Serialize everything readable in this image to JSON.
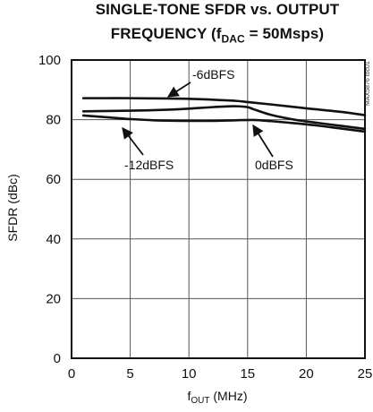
{
  "title": {
    "line1": "SINGLE-TONE SFDR vs. OUTPUT",
    "line2_prefix": "FREQUENCY (f",
    "line2_sub": "DAC",
    "line2_suffix": " = 50Msps)"
  },
  "figure_code": "MAX5876 toc01",
  "chart_data": {
    "type": "line",
    "title": "SINGLE-TONE SFDR vs. OUTPUT FREQUENCY (fDAC = 50Msps)",
    "xlabel": {
      "prefix": "f",
      "sub": "OUT",
      "suffix": " (MHz)"
    },
    "ylabel": "SFDR (dBc)",
    "xlim": [
      0,
      25
    ],
    "ylim": [
      0,
      100
    ],
    "xticks": [
      0,
      5,
      10,
      15,
      20,
      25
    ],
    "yticks": [
      0,
      20,
      40,
      60,
      80,
      100
    ],
    "grid": true,
    "series": [
      {
        "name": "-6dBFS",
        "x": [
          1,
          3,
          5,
          8,
          10,
          12,
          14,
          15,
          17,
          20,
          23,
          25
        ],
        "y": [
          87.2,
          87.2,
          87.2,
          87.1,
          87.0,
          86.7,
          86.3,
          85.9,
          85.1,
          83.8,
          82.6,
          81.5
        ]
      },
      {
        "name": "0dBFS",
        "x": [
          1,
          3,
          5,
          8,
          10,
          12,
          13,
          14,
          15,
          15.5,
          17,
          19,
          21,
          23,
          25
        ],
        "y": [
          82.8,
          82.9,
          83.0,
          83.3,
          83.7,
          84.2,
          84.4,
          84.5,
          84.2,
          83.5,
          81.6,
          80.0,
          78.9,
          77.9,
          76.9
        ]
      },
      {
        "name": "-12dBFS",
        "x": [
          1,
          3,
          5,
          7,
          10,
          12,
          14,
          15.5,
          17,
          19,
          21,
          23,
          25
        ],
        "y": [
          81.4,
          80.8,
          80.2,
          79.8,
          79.6,
          79.6,
          79.8,
          79.9,
          79.5,
          78.8,
          78.0,
          77.0,
          76.0
        ]
      }
    ],
    "annotations": [
      {
        "text": "-6dBFS",
        "target_series": "-6dBFS"
      },
      {
        "text": "-12dBFS",
        "target_series": "-12dBFS"
      },
      {
        "text": "0dBFS",
        "target_series": "0dBFS"
      }
    ]
  }
}
